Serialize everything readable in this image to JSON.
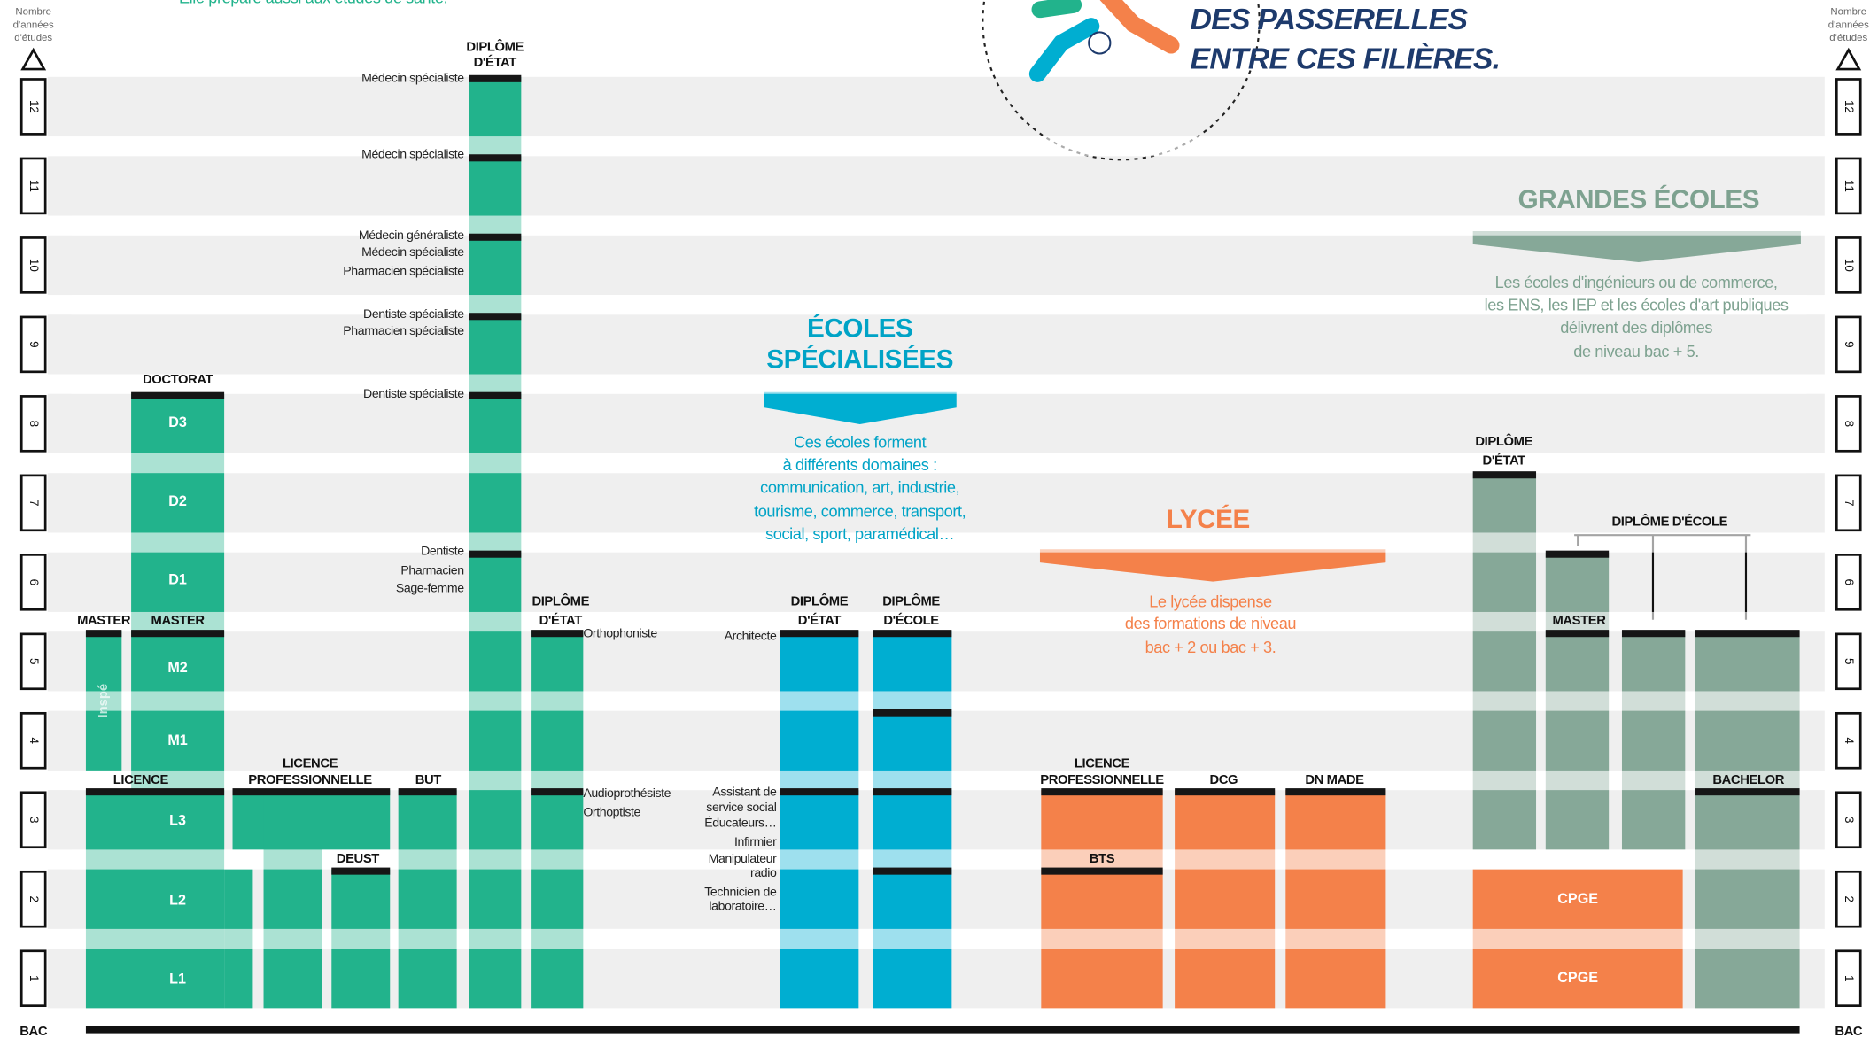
{
  "header": {
    "intro": "Elle prépare aussi aux études de santé.",
    "title": [
      "DES PASSERELLES",
      "ENTRE CES FILIÈRES."
    ]
  },
  "axis": {
    "label": [
      "Nombre",
      "d'années",
      "d'études"
    ],
    "years": [
      1,
      2,
      3,
      4,
      5,
      6,
      7,
      8,
      9,
      10,
      11,
      12
    ],
    "base": "BAC"
  },
  "ecoles_specialisees": {
    "title": [
      "ÉCOLES",
      "SPÉCIALISÉES"
    ],
    "desc": [
      "Ces écoles forment",
      "à différents domaines :",
      "communication, art, industrie,",
      "tourisme, commerce, transport,",
      "social, sport, paramédical…"
    ]
  },
  "lycee": {
    "title": "LYCÉE",
    "desc": [
      "Le lycée dispense",
      "des formations de niveau",
      "bac + 2 ou bac + 3."
    ]
  },
  "grandes_ecoles": {
    "title": "GRANDES ÉCOLES",
    "desc": [
      "Les écoles d'ingénieurs ou de commerce,",
      "les ENS, les IEP et les écoles d'art publiques",
      "délivrent des diplômes",
      "de niveau bac + 5."
    ]
  },
  "heads": {
    "licence": "LICENCE",
    "master_inspe": "MASTER",
    "master": "MASTER",
    "doctorat": "DOCTORAT",
    "licence_pro": [
      "LICENCE",
      "PROFESSIONNELLE"
    ],
    "deust": "DEUST",
    "but": "BUT",
    "sante": [
      "DIPLÔME",
      "D'ÉTAT"
    ],
    "paramedical": [
      "DIPLÔME",
      "D'ÉTAT"
    ],
    "es_etat": [
      "DIPLÔME",
      "D'ÉTAT"
    ],
    "es_ecole": [
      "DIPLÔME",
      "D'ÉCOLE"
    ],
    "lycee_licence_pro": [
      "LICENCE",
      "PROFESSIONNELLE"
    ],
    "bts": "BTS",
    "dcg": "DCG",
    "dn_made": "DN MADE",
    "ge_etat": [
      "DIPLÔME",
      "D'ÉTAT"
    ],
    "ge_ecole": "DIPLÔME D'ÉCOLE",
    "ge_master": "MASTER",
    "bachelor": "BACHELOR"
  },
  "boxes": {
    "l1": "L1",
    "l2": "L2",
    "l3": "L3",
    "m1": "M1",
    "m2": "M2",
    "d1": "D1",
    "d2": "D2",
    "d3": "D3",
    "inspe": "Inspé",
    "cpge_1": "CPGE",
    "cpge_2": "CPGE"
  },
  "notes": {
    "sante": [
      [
        "Médecin spécialiste"
      ],
      [
        "Médecin spécialiste"
      ],
      [
        "Médecin généraliste",
        "Médecin spécialiste",
        "Pharmacien spécialiste"
      ],
      [
        "Dentiste spécialiste",
        "Pharmacien spécialiste"
      ],
      [
        "Dentiste spécialiste"
      ],
      [
        "Dentiste",
        "Pharmacien",
        "Sage-femme"
      ]
    ],
    "paramedical": [
      [
        "Orthophoniste"
      ],
      [
        "Audioprothésiste",
        "Orthoptiste"
      ]
    ],
    "ecoles": [
      [
        "Architecte"
      ],
      [
        "Assistant de",
        "service social",
        "Éducateurs…"
      ],
      [
        "Infirmier"
      ],
      [
        "Manipulateur",
        "radio"
      ],
      [
        "Technicien de",
        "laboratoire…"
      ]
    ]
  }
}
